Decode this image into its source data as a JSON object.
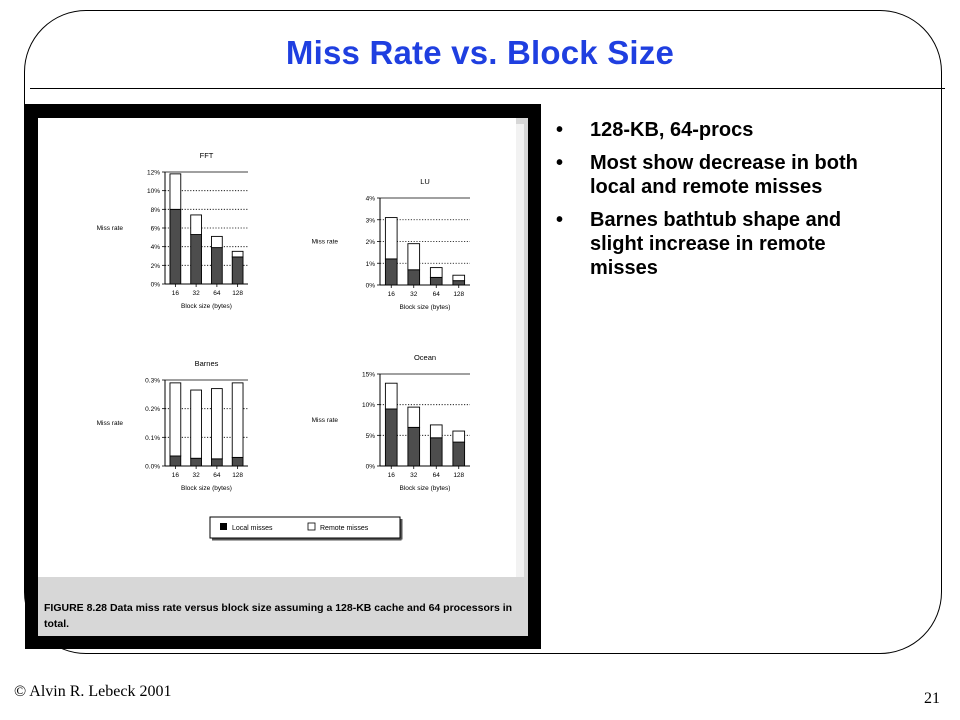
{
  "slide": {
    "title": "Miss Rate vs. Block Size",
    "bullets": [
      "128-KB, 64-procs",
      "Most show decrease in both local and remote misses",
      "Barnes bathtub shape and slight increase in remote misses"
    ],
    "bullet_glyph": "•",
    "footer_left": "© Alvin R. Lebeck 2001",
    "footer_right": "21",
    "title_color": "#1f3fe0"
  },
  "figure": {
    "caption": "FIGURE 8.28  Data miss rate versus block size assuming a 128-KB cache and 64 processors in total.",
    "legend": {
      "local": "Local misses",
      "remote": "Remote misses"
    },
    "colors": {
      "local": "#4d4d4d",
      "remote": "#ffffff"
    }
  },
  "chart_data": [
    {
      "type": "bar",
      "title": "FFT",
      "xlabel": "Block size (bytes)",
      "ylabel": "Miss rate",
      "categories": [
        "16",
        "32",
        "64",
        "128"
      ],
      "yticks": [
        "0%",
        "2%",
        "4%",
        "6%",
        "8%",
        "10%",
        "12%"
      ],
      "ylim": [
        0,
        12
      ],
      "stacked": true,
      "series": [
        {
          "name": "Local misses",
          "values": [
            8.0,
            5.3,
            3.9,
            2.9
          ]
        },
        {
          "name": "Remote misses",
          "values": [
            3.8,
            2.1,
            1.2,
            0.6
          ]
        }
      ]
    },
    {
      "type": "bar",
      "title": "LU",
      "xlabel": "Block size (bytes)",
      "ylabel": "Miss rate",
      "categories": [
        "16",
        "32",
        "64",
        "128"
      ],
      "yticks": [
        "0%",
        "1%",
        "2%",
        "3%",
        "4%"
      ],
      "ylim": [
        0,
        4
      ],
      "stacked": true,
      "series": [
        {
          "name": "Local misses",
          "values": [
            1.2,
            0.7,
            0.35,
            0.2
          ]
        },
        {
          "name": "Remote misses",
          "values": [
            1.9,
            1.2,
            0.45,
            0.25
          ]
        }
      ]
    },
    {
      "type": "bar",
      "title": "Barnes",
      "xlabel": "Block size (bytes)",
      "ylabel": "Miss rate",
      "categories": [
        "16",
        "32",
        "64",
        "128"
      ],
      "yticks": [
        "0.0%",
        "0.1%",
        "0.2%",
        "0.3%"
      ],
      "ylim": [
        0,
        0.3
      ],
      "stacked": true,
      "series": [
        {
          "name": "Local misses",
          "values": [
            0.035,
            0.027,
            0.025,
            0.03
          ]
        },
        {
          "name": "Remote misses",
          "values": [
            0.255,
            0.238,
            0.245,
            0.26
          ]
        }
      ]
    },
    {
      "type": "bar",
      "title": "Ocean",
      "xlabel": "Block size (bytes)",
      "ylabel": "Miss rate",
      "categories": [
        "16",
        "32",
        "64",
        "128"
      ],
      "yticks": [
        "0%",
        "5%",
        "10%",
        "15%"
      ],
      "ylim": [
        0,
        15
      ],
      "stacked": true,
      "series": [
        {
          "name": "Local misses",
          "values": [
            9.3,
            6.3,
            4.6,
            3.9
          ]
        },
        {
          "name": "Remote misses",
          "values": [
            4.2,
            3.3,
            2.1,
            1.8
          ]
        }
      ]
    }
  ]
}
